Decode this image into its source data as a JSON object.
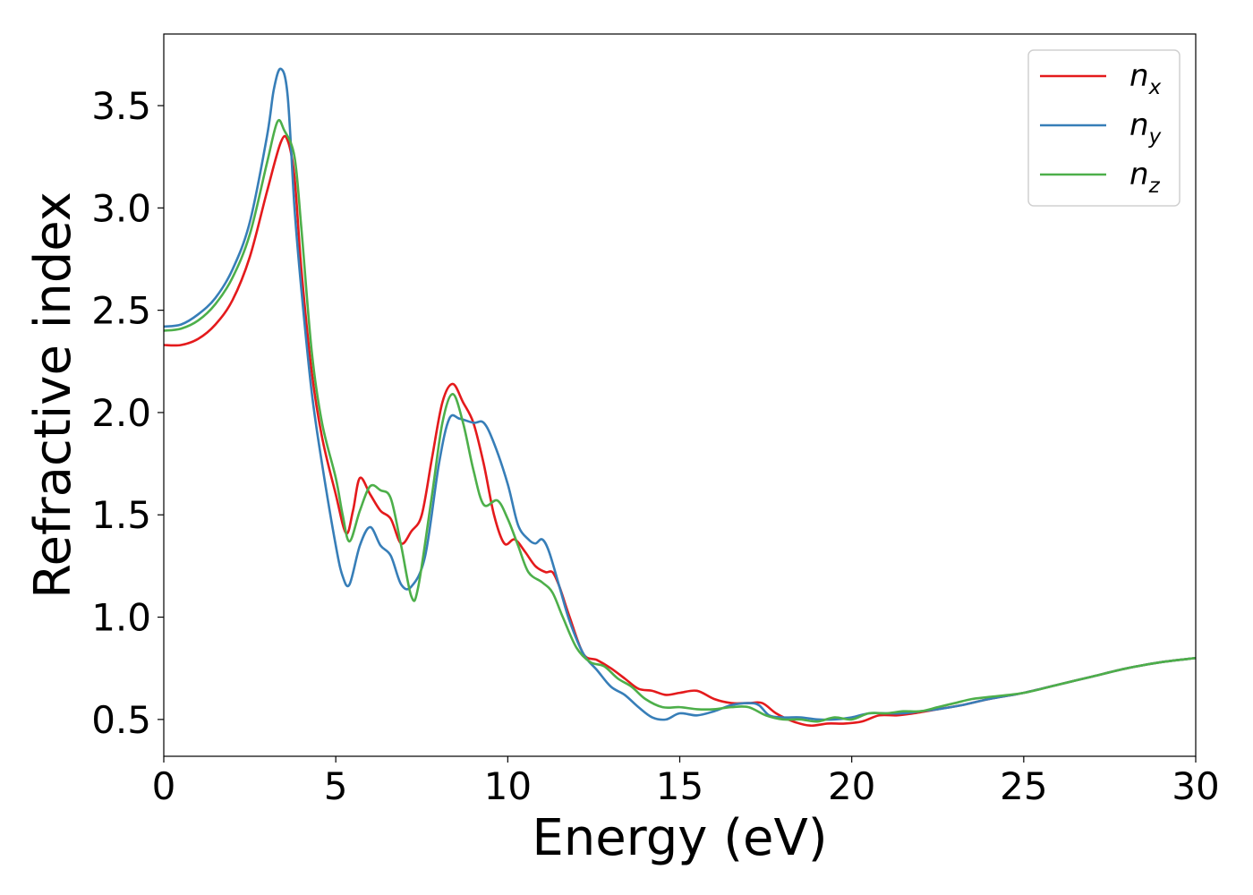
{
  "chart_data": {
    "type": "line",
    "title": "",
    "xlabel": "Energy (eV)",
    "ylabel": "Refractive index",
    "xlim": [
      0,
      30
    ],
    "ylim": [
      0.32,
      3.85
    ],
    "xticks": [
      0,
      5,
      10,
      15,
      20,
      25,
      30
    ],
    "yticks": [
      0.5,
      1.0,
      1.5,
      2.0,
      2.5,
      3.0,
      3.5
    ],
    "xtick_labels": [
      "0",
      "5",
      "10",
      "15",
      "20",
      "25",
      "30"
    ],
    "ytick_labels": [
      "0.5",
      "1.0",
      "1.5",
      "2.0",
      "2.5",
      "3.0",
      "3.5"
    ],
    "grid": false,
    "legend_position": "top-right",
    "series": [
      {
        "name": "n_x",
        "label_main": "n",
        "label_sub": "x",
        "color": "#e41a1c",
        "points": [
          [
            0,
            2.33
          ],
          [
            0.5,
            2.33
          ],
          [
            1,
            2.36
          ],
          [
            1.5,
            2.43
          ],
          [
            2,
            2.55
          ],
          [
            2.5,
            2.76
          ],
          [
            3,
            3.08
          ],
          [
            3.4,
            3.32
          ],
          [
            3.6,
            3.33
          ],
          [
            3.8,
            3.15
          ],
          [
            4,
            2.7
          ],
          [
            4.3,
            2.2
          ],
          [
            4.6,
            1.88
          ],
          [
            5,
            1.6
          ],
          [
            5.3,
            1.41
          ],
          [
            5.5,
            1.52
          ],
          [
            5.7,
            1.68
          ],
          [
            6,
            1.6
          ],
          [
            6.3,
            1.52
          ],
          [
            6.6,
            1.48
          ],
          [
            6.9,
            1.36
          ],
          [
            7.2,
            1.42
          ],
          [
            7.5,
            1.5
          ],
          [
            7.8,
            1.78
          ],
          [
            8.1,
            2.05
          ],
          [
            8.4,
            2.14
          ],
          [
            8.7,
            2.05
          ],
          [
            9,
            1.95
          ],
          [
            9.3,
            1.75
          ],
          [
            9.6,
            1.5
          ],
          [
            9.9,
            1.36
          ],
          [
            10.2,
            1.38
          ],
          [
            10.5,
            1.32
          ],
          [
            10.8,
            1.25
          ],
          [
            11.1,
            1.22
          ],
          [
            11.3,
            1.22
          ],
          [
            11.5,
            1.15
          ],
          [
            11.8,
            1.0
          ],
          [
            12.2,
            0.82
          ],
          [
            12.6,
            0.79
          ],
          [
            13,
            0.75
          ],
          [
            13.4,
            0.7
          ],
          [
            13.8,
            0.65
          ],
          [
            14.2,
            0.64
          ],
          [
            14.6,
            0.62
          ],
          [
            15,
            0.63
          ],
          [
            15.5,
            0.64
          ],
          [
            16,
            0.6
          ],
          [
            16.5,
            0.58
          ],
          [
            17,
            0.58
          ],
          [
            17.4,
            0.58
          ],
          [
            17.8,
            0.53
          ],
          [
            18.3,
            0.49
          ],
          [
            18.8,
            0.47
          ],
          [
            19.3,
            0.48
          ],
          [
            19.8,
            0.48
          ],
          [
            20.3,
            0.49
          ],
          [
            20.8,
            0.52
          ],
          [
            21.3,
            0.52
          ],
          [
            21.8,
            0.53
          ],
          [
            22.5,
            0.55
          ],
          [
            23.2,
            0.57
          ],
          [
            24,
            0.6
          ],
          [
            25,
            0.63
          ],
          [
            26,
            0.67
          ],
          [
            27,
            0.71
          ],
          [
            28,
            0.75
          ],
          [
            29,
            0.78
          ],
          [
            30,
            0.8
          ]
        ]
      },
      {
        "name": "n_y",
        "label_main": "n",
        "label_sub": "y",
        "color": "#377eb8",
        "points": [
          [
            0,
            2.42
          ],
          [
            0.5,
            2.43
          ],
          [
            1,
            2.48
          ],
          [
            1.5,
            2.56
          ],
          [
            2,
            2.7
          ],
          [
            2.5,
            2.93
          ],
          [
            3,
            3.35
          ],
          [
            3.2,
            3.58
          ],
          [
            3.4,
            3.68
          ],
          [
            3.6,
            3.55
          ],
          [
            3.8,
            3.0
          ],
          [
            4,
            2.6
          ],
          [
            4.3,
            2.1
          ],
          [
            4.6,
            1.75
          ],
          [
            5,
            1.35
          ],
          [
            5.2,
            1.2
          ],
          [
            5.4,
            1.16
          ],
          [
            5.7,
            1.35
          ],
          [
            6,
            1.44
          ],
          [
            6.3,
            1.35
          ],
          [
            6.6,
            1.3
          ],
          [
            6.9,
            1.16
          ],
          [
            7.2,
            1.15
          ],
          [
            7.6,
            1.3
          ],
          [
            8,
            1.75
          ],
          [
            8.3,
            1.97
          ],
          [
            8.6,
            1.97
          ],
          [
            9,
            1.95
          ],
          [
            9.3,
            1.95
          ],
          [
            9.6,
            1.85
          ],
          [
            10,
            1.65
          ],
          [
            10.3,
            1.45
          ],
          [
            10.6,
            1.38
          ],
          [
            10.8,
            1.36
          ],
          [
            11,
            1.38
          ],
          [
            11.2,
            1.32
          ],
          [
            11.5,
            1.15
          ],
          [
            11.8,
            0.98
          ],
          [
            12.2,
            0.82
          ],
          [
            12.6,
            0.74
          ],
          [
            13,
            0.66
          ],
          [
            13.4,
            0.62
          ],
          [
            13.8,
            0.56
          ],
          [
            14.2,
            0.51
          ],
          [
            14.6,
            0.5
          ],
          [
            15,
            0.53
          ],
          [
            15.5,
            0.52
          ],
          [
            16,
            0.54
          ],
          [
            16.5,
            0.57
          ],
          [
            17,
            0.58
          ],
          [
            17.3,
            0.57
          ],
          [
            17.6,
            0.52
          ],
          [
            18,
            0.51
          ],
          [
            18.5,
            0.51
          ],
          [
            19,
            0.5
          ],
          [
            19.5,
            0.5
          ],
          [
            20,
            0.51
          ],
          [
            20.5,
            0.53
          ],
          [
            21,
            0.53
          ],
          [
            21.5,
            0.53
          ],
          [
            22,
            0.54
          ],
          [
            22.5,
            0.55
          ],
          [
            23.2,
            0.57
          ],
          [
            24,
            0.6
          ],
          [
            25,
            0.63
          ],
          [
            26,
            0.67
          ],
          [
            27,
            0.71
          ],
          [
            28,
            0.75
          ],
          [
            29,
            0.78
          ],
          [
            30,
            0.8
          ]
        ]
      },
      {
        "name": "n_z",
        "label_main": "n",
        "label_sub": "z",
        "color": "#4daf4a",
        "points": [
          [
            0,
            2.4
          ],
          [
            0.5,
            2.41
          ],
          [
            1,
            2.45
          ],
          [
            1.5,
            2.53
          ],
          [
            2,
            2.66
          ],
          [
            2.5,
            2.87
          ],
          [
            3,
            3.22
          ],
          [
            3.3,
            3.42
          ],
          [
            3.5,
            3.38
          ],
          [
            3.8,
            3.25
          ],
          [
            4,
            2.9
          ],
          [
            4.3,
            2.3
          ],
          [
            4.6,
            1.95
          ],
          [
            5,
            1.68
          ],
          [
            5.2,
            1.5
          ],
          [
            5.4,
            1.37
          ],
          [
            5.7,
            1.52
          ],
          [
            6,
            1.64
          ],
          [
            6.3,
            1.62
          ],
          [
            6.6,
            1.58
          ],
          [
            6.9,
            1.35
          ],
          [
            7.2,
            1.1
          ],
          [
            7.4,
            1.15
          ],
          [
            7.8,
            1.6
          ],
          [
            8.1,
            1.95
          ],
          [
            8.4,
            2.09
          ],
          [
            8.7,
            1.95
          ],
          [
            9,
            1.72
          ],
          [
            9.3,
            1.55
          ],
          [
            9.7,
            1.57
          ],
          [
            10,
            1.48
          ],
          [
            10.3,
            1.35
          ],
          [
            10.6,
            1.22
          ],
          [
            11,
            1.17
          ],
          [
            11.3,
            1.12
          ],
          [
            11.6,
            1.0
          ],
          [
            12,
            0.85
          ],
          [
            12.4,
            0.78
          ],
          [
            12.8,
            0.76
          ],
          [
            13.2,
            0.7
          ],
          [
            13.6,
            0.66
          ],
          [
            14,
            0.6
          ],
          [
            14.5,
            0.56
          ],
          [
            15,
            0.56
          ],
          [
            15.5,
            0.55
          ],
          [
            16,
            0.55
          ],
          [
            16.5,
            0.56
          ],
          [
            17,
            0.56
          ],
          [
            17.5,
            0.52
          ],
          [
            18,
            0.5
          ],
          [
            18.5,
            0.5
          ],
          [
            19,
            0.49
          ],
          [
            19.5,
            0.51
          ],
          [
            20,
            0.5
          ],
          [
            20.5,
            0.53
          ],
          [
            21,
            0.53
          ],
          [
            21.5,
            0.54
          ],
          [
            22,
            0.54
          ],
          [
            22.5,
            0.56
          ],
          [
            23,
            0.58
          ],
          [
            23.5,
            0.6
          ],
          [
            24,
            0.61
          ],
          [
            25,
            0.63
          ],
          [
            26,
            0.67
          ],
          [
            27,
            0.71
          ],
          [
            28,
            0.75
          ],
          [
            29,
            0.78
          ],
          [
            30,
            0.8
          ]
        ]
      }
    ]
  }
}
